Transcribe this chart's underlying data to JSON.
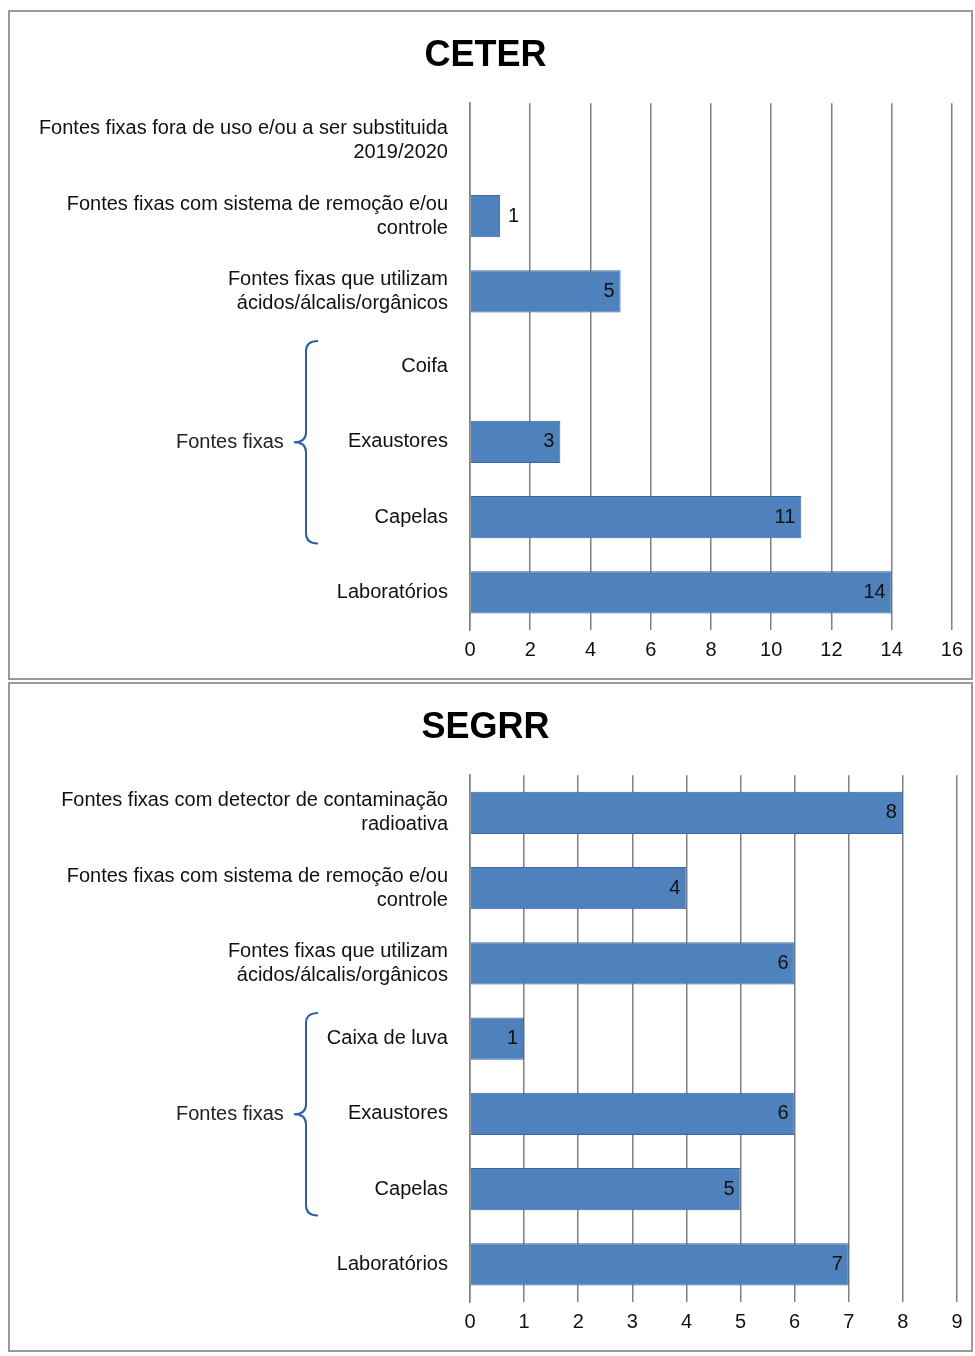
{
  "chart_data": [
    {
      "type": "bar",
      "orientation": "horizontal",
      "title": "CETER",
      "categories": [
        "Fontes fixas fora de uso e/ou a ser substituida 2019/2020",
        "Fontes fixas com sistema de remoção e/ou controle",
        "Fontes fixas que utilizam ácidos/álcalis/orgânicos",
        "Coifa",
        "Exaustores",
        "Capelas",
        "Laboratórios"
      ],
      "values": [
        null,
        1,
        5,
        null,
        3,
        11,
        14
      ],
      "color": "#4f81bd",
      "xlim": [
        0,
        16
      ],
      "xticks": [
        0,
        2,
        4,
        6,
        8,
        10,
        12,
        14,
        16
      ],
      "grid": "x",
      "legend": false,
      "data_labels": true,
      "annotations": [
        "Fontes fixas"
      ]
    },
    {
      "type": "bar",
      "orientation": "horizontal",
      "title": "SEGRR",
      "categories": [
        "Fontes fixas com detector de contaminação radioativa",
        "Fontes fixas com sistema de remoção e/ou controle",
        "Fontes fixas que utilizam ácidos/álcalis/orgânicos",
        "Caixa de luva",
        "Exaustores",
        "Capelas",
        "Laboratórios"
      ],
      "values": [
        8,
        4,
        6,
        1,
        6,
        5,
        7
      ],
      "color": "#4f81bd",
      "xlim": [
        0,
        9
      ],
      "xticks": [
        0,
        1,
        2,
        3,
        4,
        5,
        6,
        7,
        8,
        9
      ],
      "grid": "x",
      "legend": false,
      "data_labels": true,
      "annotations": [
        "Fontes fixas"
      ]
    }
  ]
}
